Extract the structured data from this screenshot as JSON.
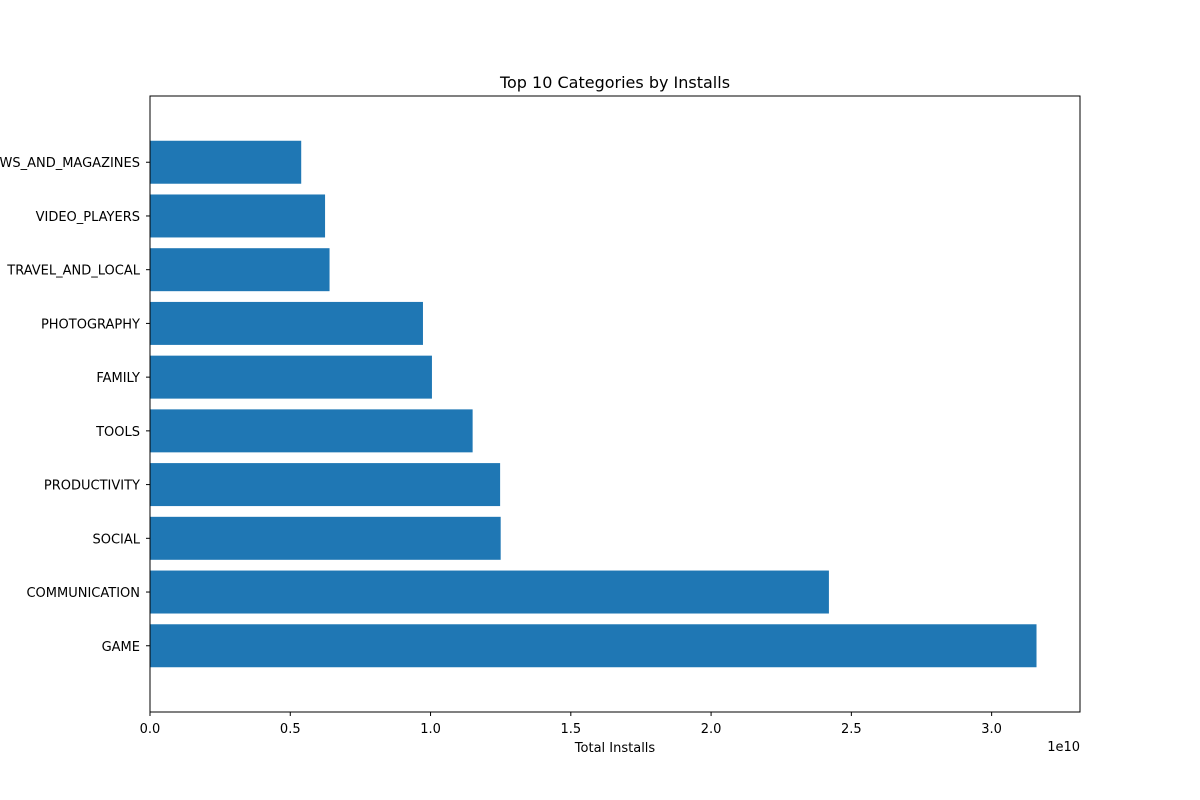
{
  "chart_data": {
    "type": "bar",
    "orientation": "horizontal",
    "title": "Top 10 Categories by Installs",
    "xlabel": "Total Installs",
    "ylabel": "",
    "x_scale_label": "1e10",
    "xlim": [
      0,
      3.315
    ],
    "x_ticks": [
      {
        "value": 0.0,
        "label": "0.0"
      },
      {
        "value": 0.5,
        "label": "0.5"
      },
      {
        "value": 1.0,
        "label": "1.0"
      },
      {
        "value": 1.5,
        "label": "1.5"
      },
      {
        "value": 2.0,
        "label": "2.0"
      },
      {
        "value": 2.5,
        "label": "2.5"
      },
      {
        "value": 3.0,
        "label": "3.0"
      }
    ],
    "categories": [
      "GAME",
      "COMMUNICATION",
      "SOCIAL",
      "PRODUCTIVITY",
      "TOOLS",
      "FAMILY",
      "PHOTOGRAPHY",
      "TRAVEL_AND_LOCAL",
      "VIDEO_PLAYERS",
      "NEWS_AND_MAGAZINES"
    ],
    "values": [
      3.16,
      2.42,
      1.25,
      1.248,
      1.15,
      1.005,
      0.973,
      0.64,
      0.624,
      0.539
    ],
    "bar_color": "#1f77b4",
    "grid": false,
    "legend": "none"
  }
}
